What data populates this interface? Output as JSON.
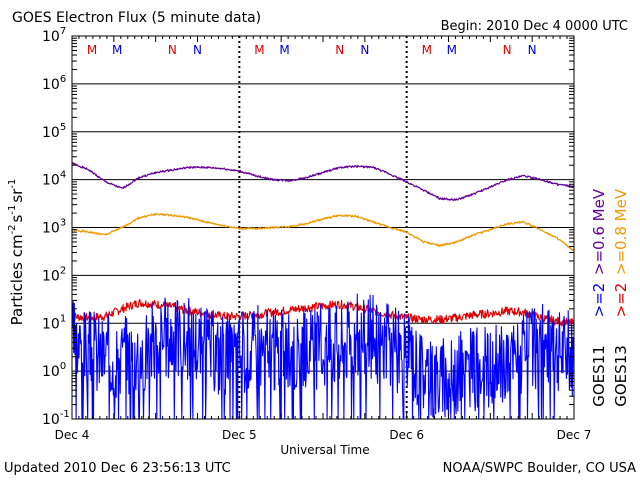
{
  "chart_data": {
    "type": "line",
    "title": "GOES Electron Flux (5 minute data)",
    "begin_label": "Begin: 2010 Dec 4 0000 UTC",
    "xlabel": "Universal Time",
    "ylabel_parts": [
      "Particles cm",
      "-2",
      "s",
      "-1",
      "sr",
      "-1"
    ],
    "x_tick_labels": [
      "Dec 4",
      "Dec 5",
      "Dec 6",
      "Dec 7"
    ],
    "xlim_days": [
      0,
      3
    ],
    "y_scale": "log",
    "ylim": [
      0.1,
      10000000
    ],
    "y_ticks": [
      {
        "value": 0.1,
        "base": "10",
        "exp": "-1"
      },
      {
        "value": 1,
        "base": "10",
        "exp": "0"
      },
      {
        "value": 10,
        "base": "10",
        "exp": "1"
      },
      {
        "value": 100,
        "base": "10",
        "exp": "2"
      },
      {
        "value": 1000,
        "base": "10",
        "exp": "3"
      },
      {
        "value": 10000,
        "base": "10",
        "exp": "4"
      },
      {
        "value": 100000,
        "base": "10",
        "exp": "5"
      },
      {
        "value": 1000000,
        "base": "10",
        "exp": "6"
      },
      {
        "value": 10000000,
        "base": "10",
        "exp": "7"
      }
    ],
    "grid": "horizontal lines at each decade; dotted vertical day separators",
    "threshold_line": {
      "value": 1000,
      "style": "dashed"
    },
    "mn_markers": [
      {
        "day": 0.12,
        "letter": "M",
        "color": "#dd0000"
      },
      {
        "day": 0.27,
        "letter": "M",
        "color": "#0000dd"
      },
      {
        "day": 0.6,
        "letter": "N",
        "color": "#dd0000"
      },
      {
        "day": 0.75,
        "letter": "N",
        "color": "#0000dd"
      },
      {
        "day": 1.12,
        "letter": "M",
        "color": "#dd0000"
      },
      {
        "day": 1.27,
        "letter": "M",
        "color": "#0000dd"
      },
      {
        "day": 1.6,
        "letter": "N",
        "color": "#dd0000"
      },
      {
        "day": 1.75,
        "letter": "N",
        "color": "#0000dd"
      },
      {
        "day": 2.12,
        "letter": "M",
        "color": "#dd0000"
      },
      {
        "day": 2.27,
        "letter": "M",
        "color": "#0000dd"
      },
      {
        "day": 2.6,
        "letter": "N",
        "color": "#dd0000"
      },
      {
        "day": 2.75,
        "letter": "N",
        "color": "#0000dd"
      }
    ],
    "legend": {
      "placement": "right",
      "groups": [
        {
          "name": "GOES11",
          "entries": [
            {
              "label": ">=2",
              "color": "#0000ff"
            },
            {
              "label": ">=0.6 MeV",
              "color": "#660099"
            }
          ]
        },
        {
          "name": "GOES13",
          "entries": [
            {
              "label": ">=2",
              "color": "#dd0000"
            },
            {
              "label": ">=0.8 MeV",
              "color": "#ee9900"
            }
          ]
        }
      ]
    },
    "series": [
      {
        "color": "#660099",
        "style": "smooth",
        "x": [
          0,
          0.1,
          0.2,
          0.3,
          0.4,
          0.5,
          0.6,
          0.7,
          0.8,
          0.9,
          1.0,
          1.1,
          1.2,
          1.3,
          1.4,
          1.5,
          1.6,
          1.7,
          1.8,
          1.9,
          2.0,
          2.1,
          2.2,
          2.3,
          2.4,
          2.5,
          2.6,
          2.7,
          2.8,
          2.9,
          3.0
        ],
        "y": [
          22000,
          16000,
          9000,
          6500,
          11000,
          14000,
          16000,
          18000,
          18000,
          17000,
          15000,
          12000,
          10000,
          9500,
          11000,
          14000,
          18000,
          19000,
          18000,
          13000,
          9000,
          6000,
          4000,
          3800,
          5000,
          7000,
          10000,
          12000,
          10000,
          8000,
          7000
        ]
      },
      {
        "color": "#ee9900",
        "style": "smooth",
        "x": [
          0,
          0.1,
          0.2,
          0.3,
          0.4,
          0.5,
          0.6,
          0.7,
          0.8,
          0.9,
          1.0,
          1.1,
          1.2,
          1.3,
          1.4,
          1.5,
          1.6,
          1.7,
          1.8,
          1.9,
          2.0,
          2.1,
          2.2,
          2.3,
          2.4,
          2.5,
          2.6,
          2.7,
          2.8,
          2.9,
          3.0
        ],
        "y": [
          900,
          800,
          700,
          1000,
          1600,
          1900,
          1800,
          1600,
          1300,
          1100,
          950,
          950,
          1000,
          1050,
          1200,
          1500,
          1800,
          1700,
          1300,
          1000,
          800,
          500,
          420,
          500,
          700,
          900,
          1200,
          1300,
          900,
          600,
          320
        ]
      },
      {
        "color": "#dd0000",
        "style": "noisy",
        "amp_decades": 0.09,
        "seed": 7,
        "x": [
          0,
          0.1,
          0.2,
          0.3,
          0.4,
          0.5,
          0.6,
          0.7,
          0.8,
          0.9,
          1.0,
          1.1,
          1.2,
          1.3,
          1.4,
          1.5,
          1.6,
          1.7,
          1.8,
          1.9,
          2.0,
          2.1,
          2.2,
          2.3,
          2.4,
          2.5,
          2.6,
          2.7,
          2.8,
          2.9,
          3.0
        ],
        "y": [
          14,
          13,
          14,
          20,
          27,
          25,
          22,
          18,
          16,
          14,
          14,
          15,
          17,
          19,
          21,
          23,
          25,
          22,
          18,
          15,
          13,
          12,
          12,
          13,
          15,
          16,
          18,
          17,
          13,
          11,
          10
        ]
      },
      {
        "color": "#0000ff",
        "style": "noisy-dropouts",
        "amp_decades": 0.9,
        "seed": 3,
        "x": [
          0,
          0.1,
          0.2,
          0.3,
          0.4,
          0.5,
          0.6,
          0.7,
          0.8,
          0.9,
          1.0,
          1.1,
          1.2,
          1.3,
          1.4,
          1.5,
          1.6,
          1.7,
          1.8,
          1.9,
          2.0,
          2.1,
          2.2,
          2.3,
          2.4,
          2.5,
          2.6,
          2.7,
          2.8,
          2.9,
          3.0
        ],
        "y": [
          8,
          5,
          4,
          4,
          5,
          8,
          10,
          9,
          6,
          4,
          5,
          6,
          5,
          4,
          5,
          6,
          8,
          10,
          9,
          6,
          4,
          2,
          1.2,
          1.5,
          2,
          2,
          3,
          4,
          6,
          5,
          4
        ],
        "floor": 0.1
      }
    ]
  },
  "footer": {
    "updated": "Updated 2010 Dec  6 23:56:13 UTC",
    "credit": "NOAA/SWPC Boulder, CO USA"
  },
  "colors": {
    "goes11_ge2": "#0000ff",
    "goes11_ge06": "#660099",
    "goes13_ge2": "#dd0000",
    "goes13_ge08": "#ee9900"
  }
}
